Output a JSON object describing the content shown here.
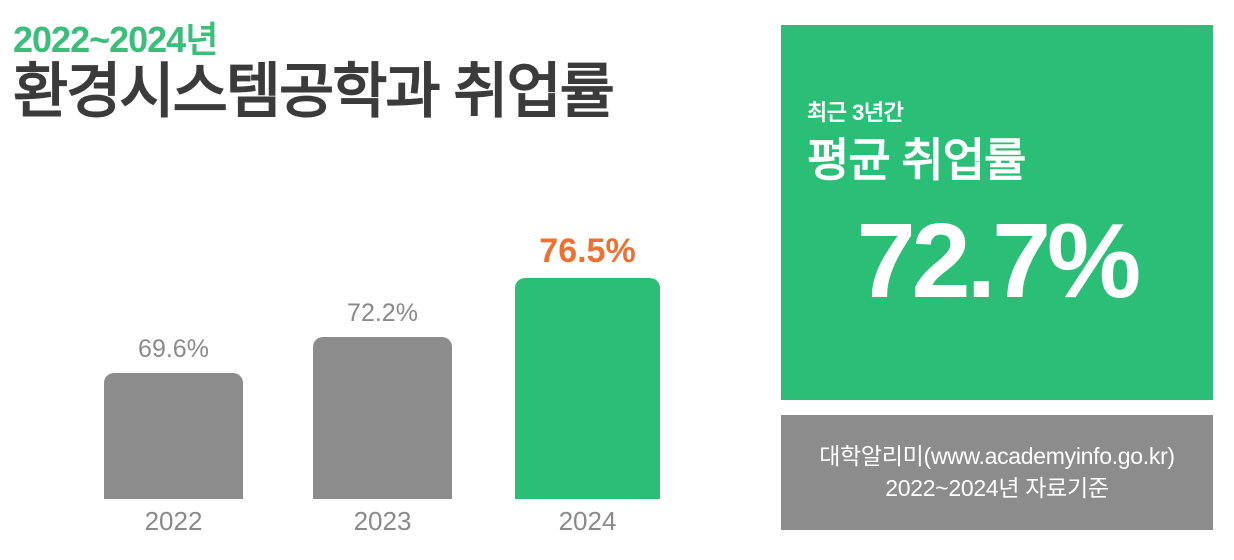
{
  "colors": {
    "brand_green": "#2BBE76",
    "title_green": "#3BBE7A",
    "bar_gray": "#8C8C8C",
    "label_gray": "#8A8A8A",
    "highlight_orange": "#ED7133",
    "title_dark": "#3B3B3B",
    "panel_text": "#FFFFFF"
  },
  "header": {
    "period": "2022~2024년",
    "title": "환경시스템공학과 취업률"
  },
  "chart_data": {
    "type": "bar",
    "title": "2022~2024년 환경시스템공학과 취업률",
    "categories": [
      "2022",
      "2023",
      "2024"
    ],
    "values": [
      69.6,
      72.2,
      76.5
    ],
    "value_labels": [
      "69.6%",
      "72.2%",
      "76.5%"
    ],
    "unit": "%",
    "bar_colors": [
      "#8C8C8C",
      "#8C8C8C",
      "#2BBE76"
    ],
    "label_colors": [
      "#8A8A8A",
      "#8A8A8A",
      "#ED7133"
    ],
    "highlight_category": "2024",
    "xlabel": "",
    "ylabel": "",
    "grid": false,
    "legend": false,
    "baseline_not_zero": true
  },
  "summary_panel": {
    "eyebrow": "최근 3년간",
    "label": "평균 취업률",
    "value": "72.7%"
  },
  "source_panel": {
    "line1": "대학알리미(www.academyinfo.go.kr)",
    "line2": "2022~2024년 자료기준"
  }
}
